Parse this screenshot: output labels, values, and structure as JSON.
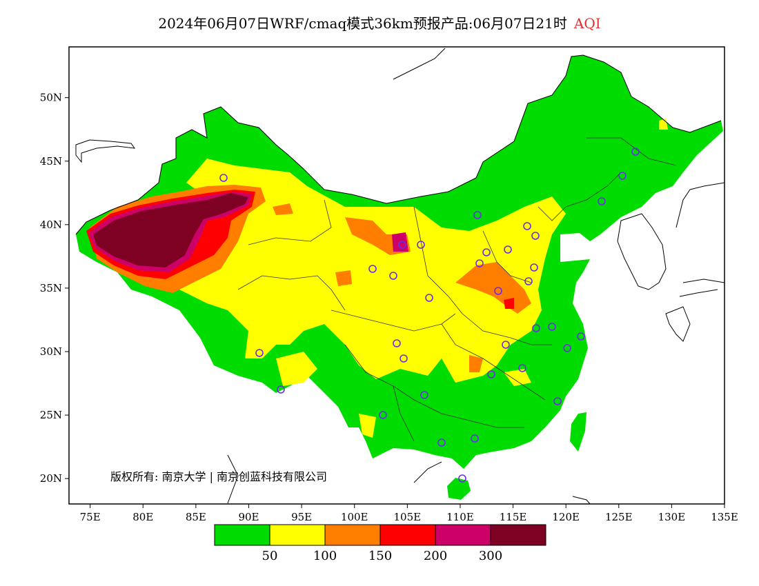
{
  "header": {
    "title": "2024年06月07日WRF/cmaq模式36km预报产品:06月07日21时",
    "variable": "AQI"
  },
  "map": {
    "lon_range": [
      73,
      135
    ],
    "lat_range": [
      18,
      54
    ],
    "x_ticks": [
      "75E",
      "80E",
      "85E",
      "90E",
      "95E",
      "100E",
      "105E",
      "110E",
      "115E",
      "120E",
      "125E",
      "130E",
      "135E"
    ],
    "y_ticks": [
      "50N",
      "45N",
      "40N",
      "35N",
      "30N",
      "25N",
      "20N"
    ],
    "copyright": "版权所有: 南京大学 | 南京创蓝科技有限公司"
  },
  "legend": {
    "colors": [
      "#00dc00",
      "#ffff00",
      "#ff7e00",
      "#ff0000",
      "#cc0066",
      "#7e0023"
    ],
    "labels": [
      "50",
      "100",
      "150",
      "200",
      "300"
    ]
  }
}
